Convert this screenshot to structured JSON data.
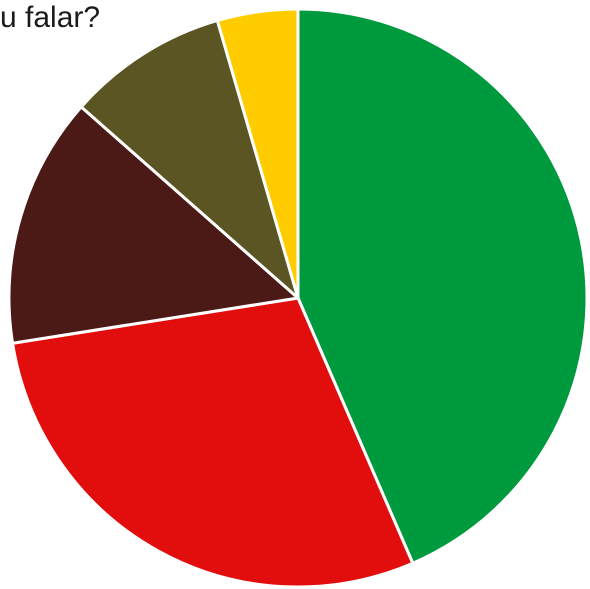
{
  "chart_data": {
    "type": "pie",
    "title": "u falar?",
    "start_angle_deg": 0,
    "direction": "clockwise",
    "slices": [
      {
        "value": 43.5,
        "color": "#009a3e"
      },
      {
        "value": 29.0,
        "color": "#e20e0e"
      },
      {
        "value": 14.0,
        "color": "#4b1a17"
      },
      {
        "value": 9.0,
        "color": "#5a5523"
      },
      {
        "value": 4.5,
        "color": "#ffcc00"
      }
    ]
  }
}
